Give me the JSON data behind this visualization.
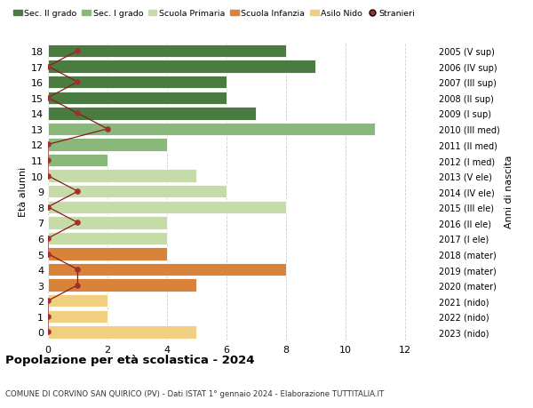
{
  "title": "Popolazione per età scolastica - 2024",
  "subtitle": "COMUNE DI CORVINO SAN QUIRICO (PV) - Dati ISTAT 1° gennaio 2024 - Elaborazione TUTTITALIA.IT",
  "ylabel_left": "Età alunni",
  "ylabel_right": "Anni di nascita",
  "xlim": [
    0,
    13
  ],
  "xticks": [
    0,
    2,
    4,
    6,
    8,
    10,
    12
  ],
  "ages": [
    18,
    17,
    16,
    15,
    14,
    13,
    12,
    11,
    10,
    9,
    8,
    7,
    6,
    5,
    4,
    3,
    2,
    1,
    0
  ],
  "right_labels": [
    "2005 (V sup)",
    "2006 (IV sup)",
    "2007 (III sup)",
    "2008 (II sup)",
    "2009 (I sup)",
    "2010 (III med)",
    "2011 (II med)",
    "2012 (I med)",
    "2013 (V ele)",
    "2014 (IV ele)",
    "2015 (III ele)",
    "2016 (II ele)",
    "2017 (I ele)",
    "2018 (mater)",
    "2019 (mater)",
    "2020 (mater)",
    "2021 (nido)",
    "2022 (nido)",
    "2023 (nido)"
  ],
  "bar_values": [
    8,
    9,
    6,
    6,
    7,
    11,
    4,
    2,
    5,
    6,
    8,
    4,
    4,
    4,
    8,
    5,
    2,
    2,
    5
  ],
  "bar_colors": [
    "#4a7c41",
    "#4a7c41",
    "#4a7c41",
    "#4a7c41",
    "#4a7c41",
    "#8ab87a",
    "#8ab87a",
    "#8ab87a",
    "#c5dba8",
    "#c5dba8",
    "#c5dba8",
    "#c5dba8",
    "#c5dba8",
    "#d9823a",
    "#d9823a",
    "#d9823a",
    "#f0d080",
    "#f0d080",
    "#f0d080"
  ],
  "stranieri_x": [
    1,
    0,
    1,
    0,
    1,
    2,
    0,
    0,
    0,
    1,
    0,
    1,
    0,
    0,
    1,
    1,
    0,
    0,
    0
  ],
  "legend_labels": [
    "Sec. II grado",
    "Sec. I grado",
    "Scuola Primaria",
    "Scuola Infanzia",
    "Asilo Nido",
    "Stranieri"
  ],
  "legend_colors": [
    "#4a7c41",
    "#8ab87a",
    "#c5dba8",
    "#d9823a",
    "#f0d080",
    "#a03030"
  ],
  "bg_color": "#ffffff",
  "bar_height": 0.82,
  "grid_color": "#cccccc",
  "stranieri_line_color": "#8b1a1a",
  "stranieri_dot_color": "#a03030"
}
